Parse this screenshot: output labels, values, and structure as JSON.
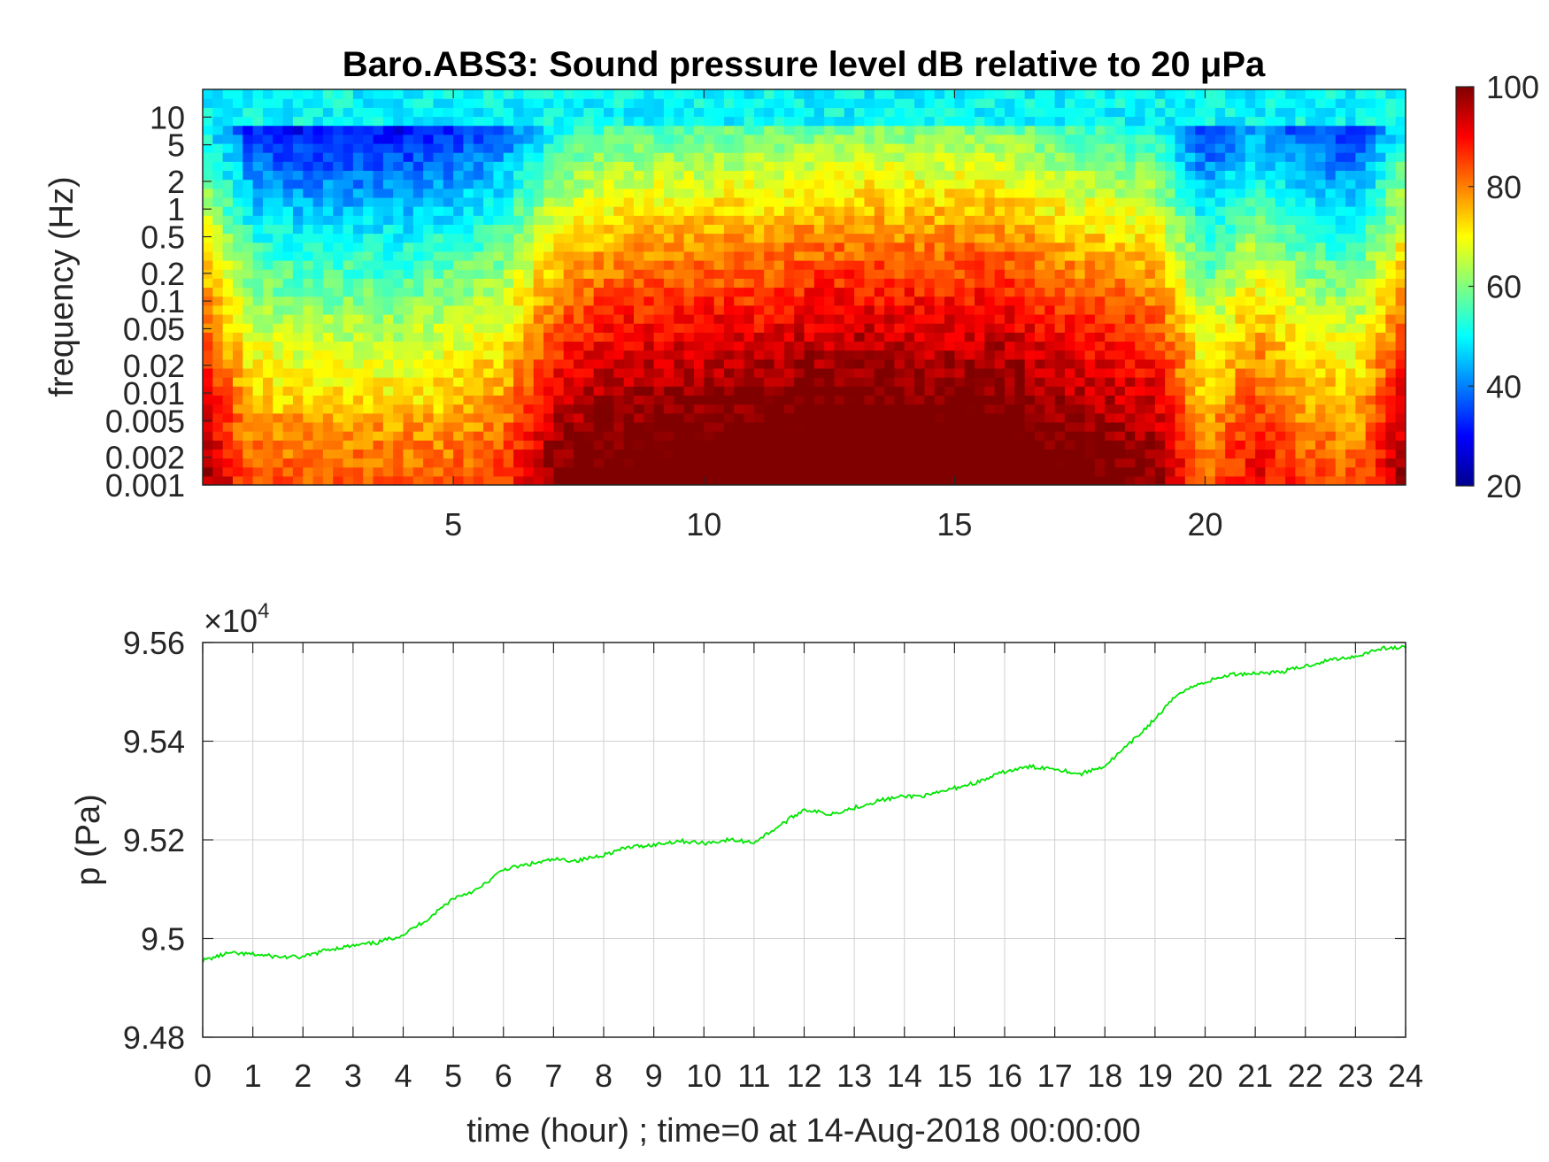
{
  "colors": {
    "line": "#00e600",
    "axis": "#262626",
    "grid": "#d0d0d0"
  },
  "chart_data": [
    {
      "type": "heatmap",
      "title": "Baro.ABS3: Sound pressure level dB relative to 20 μPa",
      "xlabel": "",
      "ylabel": "frequency (Hz)",
      "xlim": [
        0,
        24
      ],
      "ylim": [
        0.001,
        20
      ],
      "yscale": "log",
      "xticks": [
        5,
        10,
        15,
        20
      ],
      "yticks": [
        10,
        5,
        2,
        1,
        0.5,
        0.2,
        0.1,
        0.05,
        0.02,
        0.01,
        0.005,
        0.002,
        0.001
      ],
      "colormap": "jet",
      "colorbar": {
        "range": [
          20,
          100
        ],
        "ticks": [
          100,
          80,
          60,
          40,
          20
        ],
        "placement": "right"
      },
      "intensity_profile": {
        "hours": [
          0,
          1,
          2,
          3,
          4,
          5,
          6,
          7,
          8,
          9,
          10,
          11,
          12,
          13,
          14,
          15,
          16,
          17,
          18,
          19,
          20,
          21,
          22,
          23,
          24
        ],
        "level_db": [
          70,
          52,
          50,
          50,
          50,
          52,
          56,
          70,
          75,
          76,
          77,
          77,
          79,
          80,
          79,
          79,
          79,
          75,
          73,
          71,
          52,
          62,
          55,
          52,
          70
        ]
      }
    },
    {
      "type": "line",
      "title": "",
      "xlabel": "time (hour) ; time=0 at 14-Aug-2018 00:00:00",
      "ylabel": "p (Pa)",
      "y_multiplier": "×10",
      "y_exponent": "4",
      "xlim": [
        0,
        24
      ],
      "ylim": [
        9.48,
        9.56
      ],
      "xticks": [
        0,
        1,
        2,
        3,
        4,
        5,
        6,
        7,
        8,
        9,
        10,
        11,
        12,
        13,
        14,
        15,
        16,
        17,
        18,
        19,
        20,
        21,
        22,
        23,
        24
      ],
      "yticks": [
        9.48,
        9.5,
        9.52,
        9.54,
        9.56
      ],
      "ytick_labels": [
        "9.48",
        "9.5",
        "9.52",
        "9.54",
        "9.56"
      ],
      "grid": true,
      "x": [
        0,
        0.5,
        1,
        1.5,
        2,
        2.5,
        3,
        3.5,
        4,
        4.5,
        5,
        5.5,
        6,
        6.5,
        7,
        7.5,
        8,
        8.5,
        9,
        9.5,
        10,
        10.5,
        11,
        11.5,
        12,
        12.5,
        13,
        13.5,
        14,
        14.5,
        15,
        15.5,
        16,
        16.5,
        17,
        17.5,
        18,
        18.5,
        19,
        19.5,
        20,
        20.5,
        21,
        21.5,
        22,
        22.5,
        23,
        23.5,
        24
      ],
      "y": [
        9.4955,
        9.497,
        9.4968,
        9.4963,
        9.4962,
        9.4978,
        9.4985,
        9.4992,
        9.5008,
        9.504,
        9.5082,
        9.51,
        9.514,
        9.515,
        9.516,
        9.5158,
        9.517,
        9.5185,
        9.519,
        9.5198,
        9.5193,
        9.52,
        9.5195,
        9.5228,
        9.5262,
        9.5252,
        9.5265,
        9.528,
        9.5288,
        9.529,
        9.5305,
        9.5318,
        9.5338,
        9.5348,
        9.5345,
        9.5333,
        9.535,
        9.5395,
        9.5445,
        9.55,
        9.552,
        9.5535,
        9.5538,
        9.554,
        9.5552,
        9.5565,
        9.5572,
        9.5588,
        9.559
      ]
    }
  ]
}
